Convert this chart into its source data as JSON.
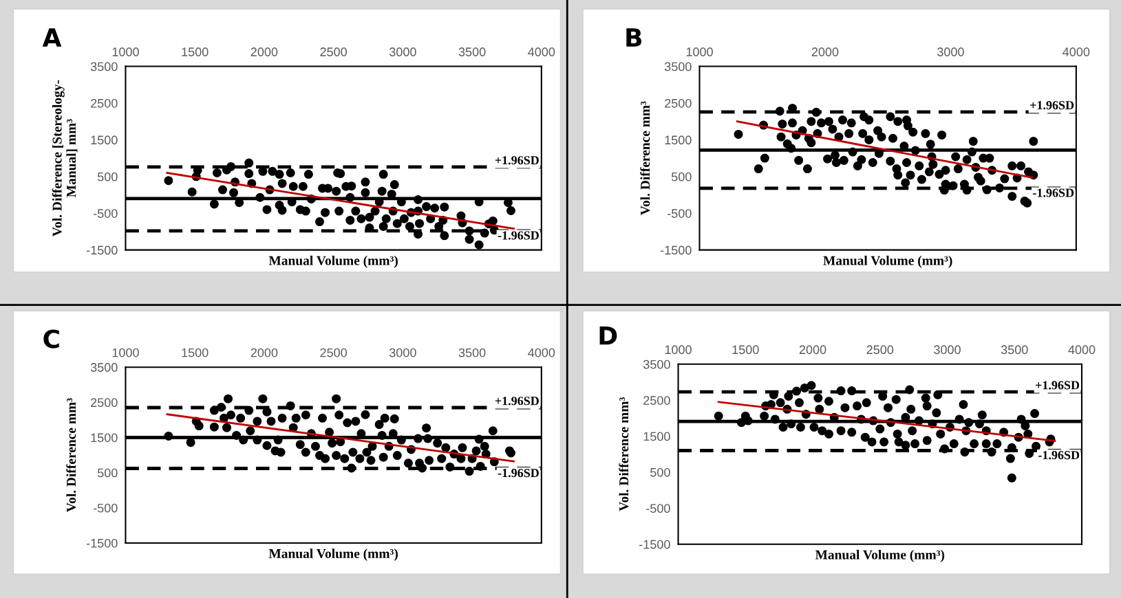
{
  "chart_data": [
    {
      "type": "scatter",
      "title": "A",
      "xlabel": "Manual Volume (mm³)",
      "ylabel": "Vol. Difference [Stereology-\nManual] mm³",
      "xlim": [
        1000,
        4000
      ],
      "xticks": [
        1000,
        1500,
        2000,
        2500,
        3000,
        3500,
        4000
      ],
      "ylim": [
        -1500,
        3500
      ],
      "yticks": [
        -1500,
        -500,
        500,
        1500,
        2500,
        3500
      ],
      "grid": false,
      "legend": false,
      "marker": "circle",
      "series": [
        {
          "color": "#000000",
          "x": [
            1310,
            1480,
            1510,
            1520,
            1640,
            1660,
            1700,
            1730,
            1760,
            1790,
            1820,
            1780,
            1890,
            1890,
            1910,
            1970,
            1990,
            2020,
            2040,
            2060,
            2110,
            2130,
            2110,
            2130,
            2190,
            2210,
            2200,
            2260,
            2280,
            2300,
            2320,
            2340,
            2400,
            2420,
            2440,
            2460,
            2520,
            2530,
            2550,
            2540,
            2590,
            2620,
            2620,
            2630,
            2660,
            2700,
            2730,
            2730,
            2760,
            2760,
            2800,
            2830,
            2860,
            2850,
            2860,
            2880,
            2920,
            2940,
            2930,
            2960,
            2990,
            3010,
            3050,
            3060,
            3110,
            3110,
            3110,
            3120,
            3170,
            3200,
            3230,
            3260,
            3290,
            3300,
            3300,
            3420,
            3430,
            3480,
            3480,
            3550,
            3550,
            3590,
            3620,
            3650,
            3660,
            3760,
            3780
          ],
          "values": [
            390,
            80,
            500,
            670,
            -250,
            600,
            140,
            680,
            770,
            350,
            -210,
            60,
            870,
            580,
            310,
            -70,
            640,
            -400,
            140,
            640,
            -280,
            -420,
            560,
            310,
            600,
            230,
            -190,
            -400,
            230,
            -440,
            560,
            -110,
            -730,
            180,
            -480,
            180,
            100,
            600,
            580,
            -440,
            230,
            -70,
            -690,
            240,
            -440,
            -650,
            350,
            60,
            -610,
            -900,
            -440,
            -190,
            560,
            100,
            -860,
            -650,
            20,
            280,
            -440,
            -780,
            -190,
            -650,
            -860,
            -480,
            -440,
            -130,
            -1070,
            -780,
            -320,
            -650,
            -360,
            -860,
            -690,
            -330,
            -1110,
            -570,
            -760,
            -980,
            -1210,
            -190,
            -1360,
            -1040,
            -790,
            -710,
            -960,
            -210,
            -430
          ]
        },
        {
          "type": "line",
          "color": "#c00000",
          "marker": "none",
          "x": [
            1300,
            3800
          ],
          "values": [
            600,
            -920
          ]
        }
      ],
      "ref_lines": [
        {
          "axis": "y",
          "value": -100,
          "color": "#000000",
          "line_style": "solid"
        },
        {
          "axis": "y",
          "value": 760,
          "label": "+1.96SD",
          "color": "#000000",
          "line_style": "dashed"
        },
        {
          "axis": "y",
          "value": -980,
          "label": "-1.96SD",
          "color": "#000000",
          "line_style": "dashed"
        }
      ]
    },
    {
      "type": "scatter",
      "title": "B",
      "xlabel": "Manual Volume (mm³)",
      "ylabel": "Vol. Difference mm³",
      "xlim": [
        1000,
        4000
      ],
      "xticks": [
        1000,
        2000,
        3000,
        4000
      ],
      "ylim": [
        -1500,
        3500
      ],
      "yticks": [
        -1500,
        -500,
        500,
        1500,
        2500,
        3500
      ],
      "grid": false,
      "legend": false,
      "marker": "circle",
      "series": [
        {
          "color": "#000000",
          "x": [
            1310,
            1470,
            1510,
            1520,
            1640,
            1650,
            1660,
            1700,
            1730,
            1740,
            1740,
            1770,
            1790,
            1820,
            1860,
            1870,
            1890,
            1890,
            1930,
            1940,
            1970,
            2020,
            2030,
            2060,
            2080,
            2090,
            2140,
            2150,
            2110,
            2190,
            2210,
            2220,
            2260,
            2290,
            2300,
            2310,
            2350,
            2350,
            2380,
            2420,
            2430,
            2450,
            2520,
            2520,
            2540,
            2570,
            2580,
            2580,
            2630,
            2650,
            2650,
            2640,
            2660,
            2680,
            2700,
            2720,
            2750,
            2770,
            2800,
            2830,
            2840,
            2850,
            2860,
            2910,
            2930,
            2950,
            2960,
            2960,
            3020,
            3040,
            3060,
            3110,
            3130,
            3130,
            3170,
            3180,
            3200,
            3220,
            3240,
            3260,
            3290,
            3310,
            3330,
            3390,
            3430,
            3490,
            3490,
            3530,
            3560,
            3590,
            3610,
            3620,
            3660,
            3660
          ],
          "values": [
            1650,
            710,
            1900,
            1000,
            2280,
            1580,
            1930,
            1390,
            1270,
            2360,
            1960,
            1630,
            940,
            1750,
            710,
            1540,
            2000,
            1420,
            2250,
            1670,
            1960,
            980,
            2000,
            1790,
            1080,
            880,
            2040,
            940,
            1580,
            1670,
            1960,
            1170,
            790,
            960,
            1670,
            2130,
            2040,
            1500,
            880,
            1750,
            1130,
            1580,
            2130,
            920,
            1540,
            710,
            2000,
            540,
            1330,
            2040,
            880,
            330,
            1880,
            540,
            1710,
            1210,
            790,
            420,
            1670,
            630,
            1380,
            1040,
            830,
            560,
            1630,
            130,
            670,
            290,
            250,
            1040,
            710,
            290,
            130,
            960,
            1170,
            1460,
            750,
            480,
            380,
            1000,
            140,
            1000,
            670,
            190,
            440,
            790,
            -40,
            460,
            790,
            -170,
            -220,
            630,
            540,
            1460
          ]
        },
        {
          "type": "line",
          "color": "#c00000",
          "marker": "none",
          "x": [
            1300,
            3650
          ],
          "values": [
            2000,
            470
          ]
        }
      ],
      "ref_lines": [
        {
          "axis": "y",
          "value": 1220,
          "color": "#000000",
          "line_style": "solid"
        },
        {
          "axis": "y",
          "value": 2260,
          "label": "+1.96SD",
          "color": "#000000",
          "line_style": "dashed"
        },
        {
          "axis": "y",
          "value": 180,
          "label": "-1.96SD",
          "color": "#000000",
          "line_style": "dashed"
        }
      ]
    },
    {
      "type": "scatter",
      "title": "C",
      "xlabel": "Manual Volume (mm³)",
      "ylabel": "Vol. Difference mm³",
      "xlim": [
        1000,
        4000
      ],
      "xticks": [
        1000,
        1500,
        2000,
        2500,
        3000,
        3500,
        4000
      ],
      "ylim": [
        -1500,
        3500
      ],
      "yticks": [
        -1500,
        -500,
        500,
        1500,
        2500,
        3500
      ],
      "grid": false,
      "legend": false,
      "marker": "circle",
      "series": [
        {
          "color": "#000000",
          "x": [
            1310,
            1470,
            1510,
            1530,
            1640,
            1640,
            1690,
            1710,
            1740,
            1730,
            1760,
            1800,
            1830,
            1850,
            1890,
            1900,
            1950,
            1950,
            1990,
            2020,
            2020,
            2050,
            2080,
            2100,
            2120,
            2130,
            2190,
            2210,
            2230,
            2260,
            2300,
            2300,
            2340,
            2370,
            2400,
            2420,
            2440,
            2470,
            2490,
            2520,
            2520,
            2540,
            2550,
            2580,
            2600,
            2630,
            2640,
            2660,
            2690,
            2700,
            2730,
            2740,
            2770,
            2780,
            2830,
            2850,
            2860,
            2870,
            2900,
            2930,
            2940,
            2960,
            2990,
            3040,
            3060,
            3110,
            3120,
            3140,
            3170,
            3180,
            3190,
            3250,
            3280,
            3310,
            3340,
            3370,
            3430,
            3420,
            3480,
            3500,
            3530,
            3550,
            3560,
            3590,
            3600,
            3650,
            3660,
            3770,
            3780
          ],
          "values": [
            1540,
            1360,
            1960,
            1830,
            2270,
            1800,
            2360,
            2050,
            2600,
            1780,
            2140,
            1560,
            2050,
            1430,
            2270,
            1690,
            1430,
            1960,
            2600,
            2230,
            1270,
            1960,
            1120,
            1430,
            1080,
            2050,
            2400,
            1780,
            2050,
            1300,
            2140,
            1080,
            1610,
            1250,
            990,
            2050,
            900,
            1650,
            1340,
            2600,
            990,
            2140,
            1380,
            900,
            1920,
            630,
            1080,
            1960,
            900,
            1610,
            2150,
            1080,
            850,
            1250,
            1870,
            1560,
            940,
            2050,
            1250,
            1610,
            2030,
            990,
            1430,
            770,
            1160,
            1470,
            770,
            630,
            1770,
            1470,
            850,
            1340,
            900,
            1210,
            660,
            1030,
            1210,
            900,
            540,
            900,
            1120,
            1450,
            680,
            1250,
            1030,
            1690,
            810,
            1120,
            1060
          ]
        },
        {
          "type": "line",
          "color": "#c00000",
          "marker": "none",
          "x": [
            1300,
            3800
          ],
          "values": [
            2160,
            820
          ]
        }
      ],
      "ref_lines": [
        {
          "axis": "y",
          "value": 1500,
          "color": "#000000",
          "line_style": "solid"
        },
        {
          "axis": "y",
          "value": 2350,
          "label": "+1.96SD",
          "color": "#000000",
          "line_style": "dashed"
        },
        {
          "axis": "y",
          "value": 620,
          "label": "-1.96SD",
          "color": "#000000",
          "line_style": "dashed"
        }
      ]
    },
    {
      "type": "scatter",
      "title": "D",
      "xlabel": "Manual Volume (mm³)",
      "ylabel": "Vol. Difference mm³",
      "xlim": [
        1000,
        4000
      ],
      "xticks": [
        1000,
        1500,
        2000,
        2500,
        3000,
        3500,
        4000
      ],
      "ylim": [
        -1500,
        3500
      ],
      "yticks": [
        -1500,
        -500,
        500,
        1500,
        2500,
        3500
      ],
      "grid": false,
      "legend": false,
      "marker": "circle",
      "series": [
        {
          "color": "#000000",
          "x": [
            1300,
            1470,
            1500,
            1520,
            1640,
            1650,
            1690,
            1710,
            1720,
            1760,
            1780,
            1810,
            1820,
            1840,
            1880,
            1900,
            1910,
            1940,
            1990,
            1950,
            2010,
            2040,
            2050,
            2070,
            2120,
            2120,
            2160,
            2210,
            2210,
            2240,
            2290,
            2290,
            2330,
            2360,
            2400,
            2390,
            2440,
            2450,
            2500,
            2520,
            2530,
            2560,
            2580,
            2620,
            2630,
            2640,
            2690,
            2690,
            2720,
            2730,
            2740,
            2760,
            2790,
            2840,
            2850,
            2850,
            2890,
            2920,
            2930,
            2950,
            2980,
            3020,
            3050,
            3090,
            3120,
            3130,
            3140,
            3160,
            3200,
            3240,
            3260,
            3290,
            3290,
            3330,
            3370,
            3420,
            3470,
            3480,
            3480,
            3530,
            3550,
            3580,
            3600,
            3610,
            3650,
            3660,
            3760,
            3770
          ],
          "values": [
            2060,
            1880,
            2060,
            1930,
            2060,
            2340,
            2380,
            2650,
            1970,
            2430,
            1750,
            2250,
            2610,
            1840,
            2750,
            2430,
            1750,
            2840,
            2910,
            2110,
            1750,
            2560,
            2250,
            1650,
            1560,
            2470,
            2020,
            2760,
            1650,
            2290,
            2760,
            1610,
            2340,
            1970,
            2430,
            1470,
            1340,
            1930,
            1700,
            2610,
            1340,
            2290,
            1880,
            2520,
            1560,
            1340,
            2020,
            1250,
            2790,
            2250,
            1650,
            1290,
            1930,
            2560,
            2340,
            1380,
            1840,
            2150,
            2650,
            1560,
            1150,
            1750,
            1290,
            1970,
            2380,
            1060,
            1650,
            1880,
            1290,
            1840,
            2090,
            1650,
            1290,
            1060,
            1290,
            1610,
            880,
            340,
            1180,
            1470,
            1970,
            1790,
            1560,
            1020,
            2130,
            1220,
            1340,
            1420
          ]
        },
        {
          "type": "line",
          "color": "#c00000",
          "marker": "none",
          "x": [
            1300,
            3800
          ],
          "values": [
            2450,
            1370
          ]
        }
      ],
      "ref_lines": [
        {
          "axis": "y",
          "value": 1910,
          "color": "#000000",
          "line_style": "solid"
        },
        {
          "axis": "y",
          "value": 2730,
          "label": "+1.96SD",
          "color": "#000000",
          "line_style": "dashed"
        },
        {
          "axis": "y",
          "value": 1100,
          "label": "-1.96SD",
          "color": "#000000",
          "line_style": "dashed"
        }
      ]
    }
  ]
}
